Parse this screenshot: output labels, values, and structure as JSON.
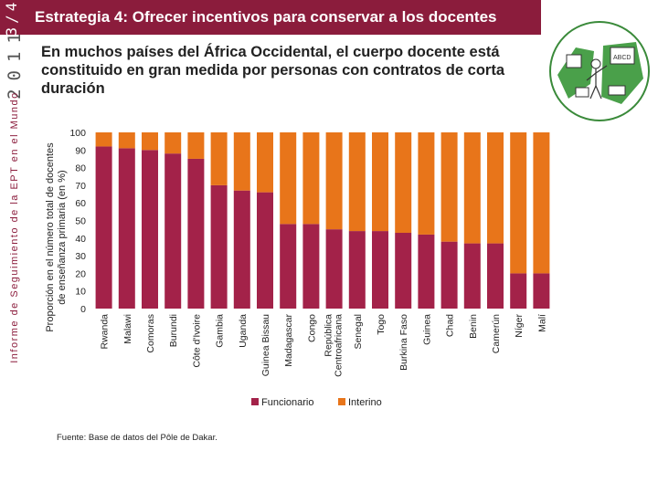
{
  "header": {
    "year_digits": "2011",
    "corner_label": "3/4",
    "series_label": "Informe de Seguimiento de la EPT en el Mundo",
    "title": "Estrategia 4: Ofrecer incentivos para conservar a los docentes",
    "subtitle": "En muchos países del África Occidental, el cuerpo docente está constituido en gran medida por personas con contratos de corta duración"
  },
  "logo": {
    "icon": "classroom-illustration-icon",
    "board_text": "ABCD"
  },
  "footer": {
    "source": "Fuente: Base de datos del Pôle de Dakar."
  },
  "colors": {
    "funcionario": "#a32249",
    "interino": "#e8751a",
    "brand": "#8b1c3c"
  },
  "chart_data": {
    "type": "bar",
    "stacked": true,
    "title": "",
    "ylabel": "Proporción en el número total de docentes de enseñanza primaria (en %)",
    "xlabel": "",
    "ylim": [
      0,
      100
    ],
    "yticks": [
      "0",
      "10",
      "20",
      "30",
      "40",
      "50",
      "60",
      "70",
      "80",
      "90",
      "100"
    ],
    "categories": [
      "Rwanda",
      "Malawi",
      "Comoras",
      "Burundi",
      "Côte d'Ivoire",
      "Gambia",
      "Uganda",
      "Guinea Bissau",
      "Madagascar",
      "Congo",
      "República Centroafricana",
      "Senegal",
      "Togo",
      "Burkina Faso",
      "Guinea",
      "Chad",
      "Benin",
      "Camerún",
      "Níger",
      "Malí"
    ],
    "series": [
      {
        "name": "Funcionario",
        "values": [
          92,
          91,
          90,
          88,
          85,
          70,
          67,
          66,
          48,
          48,
          45,
          44,
          44,
          43,
          42,
          38,
          37,
          37,
          20,
          20
        ]
      },
      {
        "name": "Interino",
        "values": [
          8,
          9,
          10,
          12,
          15,
          30,
          33,
          34,
          52,
          52,
          55,
          56,
          56,
          57,
          58,
          62,
          63,
          63,
          80,
          80
        ]
      }
    ],
    "legend_position": "bottom"
  }
}
